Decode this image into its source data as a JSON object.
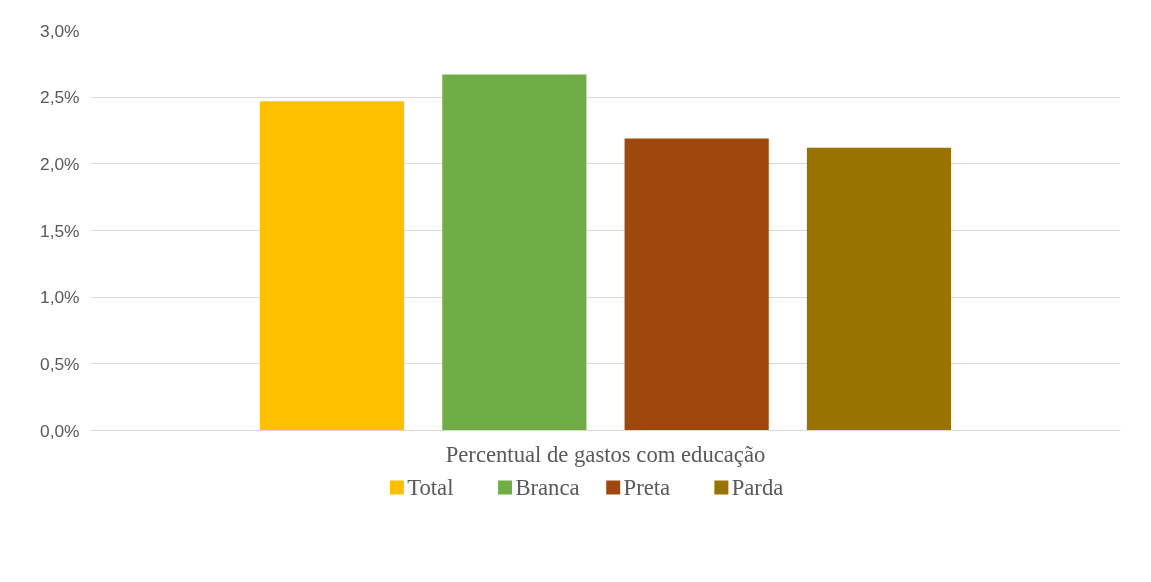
{
  "chart_data": {
    "type": "bar",
    "categories": [
      "Percentual de gastos com educação"
    ],
    "series": [
      {
        "name": "Total",
        "color": "#ffc000",
        "values": [
          2.47
        ]
      },
      {
        "name": "Branca",
        "color": "#70ad47",
        "values": [
          2.67
        ]
      },
      {
        "name": "Preta",
        "color": "#9e480e",
        "values": [
          2.19
        ]
      },
      {
        "name": "Parda",
        "color": "#997300",
        "values": [
          2.12
        ]
      }
    ],
    "ylim": [
      0,
      3
    ],
    "yticks": [
      {
        "value": 0,
        "label": "0,0%"
      },
      {
        "value": 0.5,
        "label": "0,5%"
      },
      {
        "value": 1,
        "label": "1,0%"
      },
      {
        "value": 1.5,
        "label": "1,5%"
      },
      {
        "value": 2,
        "label": "2,0%"
      },
      {
        "value": 2.5,
        "label": "2,5%"
      },
      {
        "value": 3,
        "label": "3,0%"
      }
    ],
    "grid": "y",
    "legend": "bottom"
  }
}
